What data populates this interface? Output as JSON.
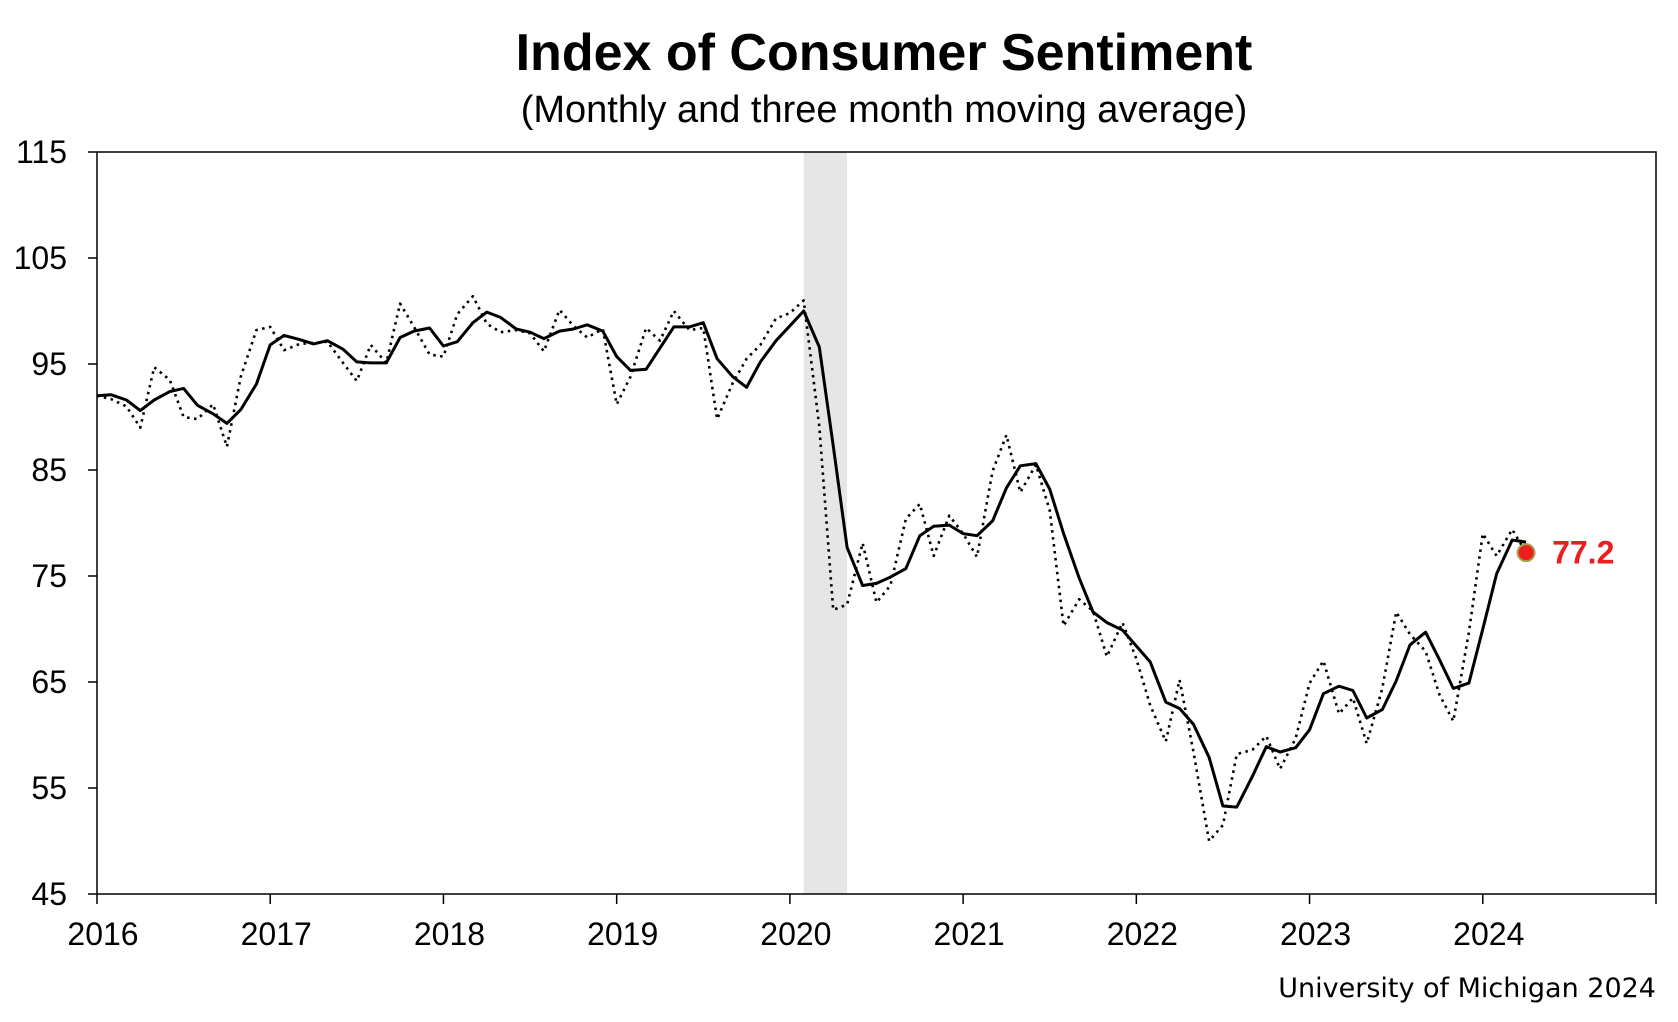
{
  "chart_data": {
    "type": "line",
    "title": "Index of Consumer Sentiment",
    "subtitle": "(Monthly and three month moving average)",
    "source": "University of Michigan 2024",
    "xlim": [
      2016,
      2025
    ],
    "ylim": [
      45,
      115
    ],
    "x_ticks": [
      "2016",
      "2017",
      "2018",
      "2019",
      "2020",
      "2021",
      "2022",
      "2023",
      "2024"
    ],
    "y_ticks": [
      "45",
      "55",
      "65",
      "75",
      "85",
      "95",
      "105",
      "115"
    ],
    "grid": false,
    "recession_band": {
      "start": 2020.08,
      "end": 2020.33,
      "color": "#e6e6e6"
    },
    "series": [
      {
        "style": "dotted",
        "color": "#000000",
        "x": [
          2016.0,
          2016.08,
          2016.17,
          2016.25,
          2016.33,
          2016.42,
          2016.5,
          2016.58,
          2016.67,
          2016.75,
          2016.83,
          2016.92,
          2017.0,
          2017.08,
          2017.17,
          2017.25,
          2017.33,
          2017.42,
          2017.5,
          2017.58,
          2017.67,
          2017.75,
          2017.83,
          2017.92,
          2018.0,
          2018.08,
          2018.17,
          2018.25,
          2018.33,
          2018.42,
          2018.5,
          2018.58,
          2018.67,
          2018.75,
          2018.83,
          2018.92,
          2019.0,
          2019.08,
          2019.17,
          2019.25,
          2019.33,
          2019.42,
          2019.5,
          2019.58,
          2019.67,
          2019.75,
          2019.83,
          2019.92,
          2020.0,
          2020.08,
          2020.17,
          2020.25,
          2020.33,
          2020.42,
          2020.5,
          2020.58,
          2020.67,
          2020.75,
          2020.83,
          2020.92,
          2021.0,
          2021.08,
          2021.17,
          2021.25,
          2021.33,
          2021.42,
          2021.5,
          2021.58,
          2021.67,
          2021.75,
          2021.83,
          2021.92,
          2022.0,
          2022.08,
          2022.17,
          2022.25,
          2022.33,
          2022.42,
          2022.5,
          2022.58,
          2022.67,
          2022.75,
          2022.83,
          2022.92,
          2023.0,
          2023.08,
          2023.17,
          2023.25,
          2023.33,
          2023.42,
          2023.5,
          2023.58,
          2023.67,
          2023.75,
          2023.83,
          2023.92,
          2024.0,
          2024.08,
          2024.17,
          2024.25
        ],
        "values": [
          92.0,
          91.7,
          91.0,
          89.0,
          94.7,
          93.5,
          90.0,
          89.8,
          91.2,
          87.2,
          93.8,
          98.2,
          98.5,
          96.3,
          96.9,
          97.0,
          97.1,
          95.1,
          93.4,
          96.8,
          95.1,
          100.7,
          98.5,
          95.9,
          95.7,
          99.7,
          101.4,
          98.8,
          98.0,
          98.2,
          97.9,
          96.2,
          100.1,
          98.6,
          97.5,
          98.3,
          91.2,
          93.8,
          98.4,
          97.2,
          100.0,
          98.2,
          98.4,
          89.8,
          93.2,
          95.5,
          96.8,
          99.3,
          99.8,
          101.0,
          89.1,
          71.8,
          72.3,
          78.1,
          72.5,
          74.1,
          80.4,
          81.8,
          76.9,
          80.7,
          79.0,
          76.8,
          84.9,
          88.3,
          82.9,
          85.5,
          81.2,
          70.3,
          72.8,
          71.7,
          67.4,
          70.6,
          67.2,
          62.8,
          59.4,
          65.2,
          58.4,
          50.0,
          51.5,
          58.2,
          58.6,
          59.9,
          56.8,
          59.7,
          64.9,
          67.0,
          62.0,
          63.5,
          59.2,
          64.4,
          71.6,
          69.5,
          67.9,
          63.8,
          61.3,
          69.7,
          79.0,
          76.9,
          79.4,
          77.2
        ]
      },
      {
        "style": "solid",
        "color": "#000000",
        "x": [
          2016.0,
          2016.08,
          2016.17,
          2016.25,
          2016.33,
          2016.42,
          2016.5,
          2016.58,
          2016.67,
          2016.75,
          2016.83,
          2016.92,
          2017.0,
          2017.08,
          2017.17,
          2017.25,
          2017.33,
          2017.42,
          2017.5,
          2017.58,
          2017.67,
          2017.75,
          2017.83,
          2017.92,
          2018.0,
          2018.08,
          2018.17,
          2018.25,
          2018.33,
          2018.42,
          2018.5,
          2018.58,
          2018.67,
          2018.75,
          2018.83,
          2018.92,
          2019.0,
          2019.08,
          2019.17,
          2019.25,
          2019.33,
          2019.42,
          2019.5,
          2019.58,
          2019.67,
          2019.75,
          2019.83,
          2019.92,
          2020.0,
          2020.08,
          2020.17,
          2020.25,
          2020.33,
          2020.42,
          2020.5,
          2020.58,
          2020.67,
          2020.75,
          2020.83,
          2020.92,
          2021.0,
          2021.08,
          2021.17,
          2021.25,
          2021.33,
          2021.42,
          2021.5,
          2021.58,
          2021.67,
          2021.75,
          2021.83,
          2021.92,
          2022.0,
          2022.08,
          2022.17,
          2022.25,
          2022.33,
          2022.42,
          2022.5,
          2022.58,
          2022.67,
          2022.75,
          2022.83,
          2022.92,
          2023.0,
          2023.08,
          2023.17,
          2023.25,
          2023.33,
          2023.42,
          2023.5,
          2023.58,
          2023.67,
          2023.75,
          2023.83,
          2023.92,
          2024.0,
          2024.08,
          2024.17,
          2024.25
        ],
        "values": [
          92.0,
          92.1,
          91.6,
          90.6,
          91.6,
          92.4,
          92.7,
          91.1,
          90.3,
          89.4,
          90.7,
          93.1,
          96.8,
          97.7,
          97.3,
          96.9,
          97.2,
          96.4,
          95.2,
          95.1,
          95.1,
          97.5,
          98.1,
          98.4,
          96.7,
          97.1,
          98.9,
          99.9,
          99.4,
          98.3,
          98.0,
          97.4,
          98.1,
          98.3,
          98.7,
          98.1,
          95.7,
          94.4,
          94.5,
          96.5,
          98.5,
          98.5,
          98.9,
          95.5,
          93.8,
          92.8,
          95.2,
          97.2,
          98.6,
          100.0,
          96.6,
          87.3,
          77.7,
          74.1,
          74.3,
          74.9,
          75.7,
          78.8,
          79.7,
          79.8,
          79.0,
          78.8,
          80.2,
          83.3,
          85.4,
          85.6,
          83.2,
          79.0,
          74.8,
          71.6,
          70.6,
          69.9,
          68.4,
          66.9,
          63.1,
          62.5,
          61.0,
          57.9,
          53.3,
          53.2,
          56.1,
          58.9,
          58.4,
          58.8,
          60.5,
          63.9,
          64.6,
          64.2,
          61.6,
          62.4,
          65.1,
          68.5,
          69.7,
          67.1,
          64.4,
          64.9,
          70.0,
          75.2,
          78.4,
          78.2
        ]
      }
    ],
    "latest_point": {
      "x": 2024.25,
      "value": 77.2,
      "label": "77.2",
      "color": "#ee1c1c"
    }
  }
}
